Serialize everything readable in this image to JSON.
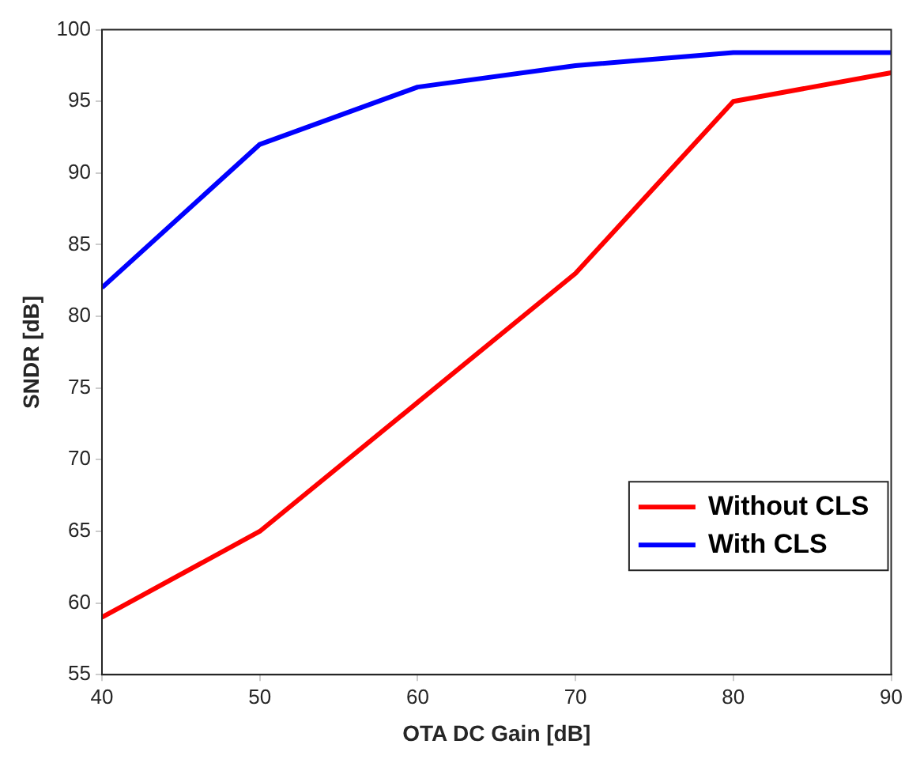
{
  "chart_data": {
    "type": "line",
    "xlabel": "OTA DC Gain [dB]",
    "ylabel": "SNDR [dB]",
    "x": [
      40,
      50,
      60,
      70,
      80,
      90
    ],
    "series": [
      {
        "name": "Without CLS",
        "color": "#ff0000",
        "values": [
          59,
          65,
          74,
          83,
          95,
          97
        ]
      },
      {
        "name": "With CLS",
        "color": "#0000ff",
        "values": [
          82,
          92,
          96,
          97.5,
          98.4,
          98.4
        ]
      }
    ],
    "xlim": [
      40,
      90
    ],
    "xticks": [
      40,
      50,
      60,
      70,
      80,
      90
    ],
    "ylim": [
      55,
      100
    ],
    "yticks": [
      55,
      60,
      65,
      70,
      75,
      80,
      85,
      90,
      95,
      100
    ],
    "grid": false,
    "legend": "bottom right",
    "marker": "none",
    "line_style": "solid"
  }
}
